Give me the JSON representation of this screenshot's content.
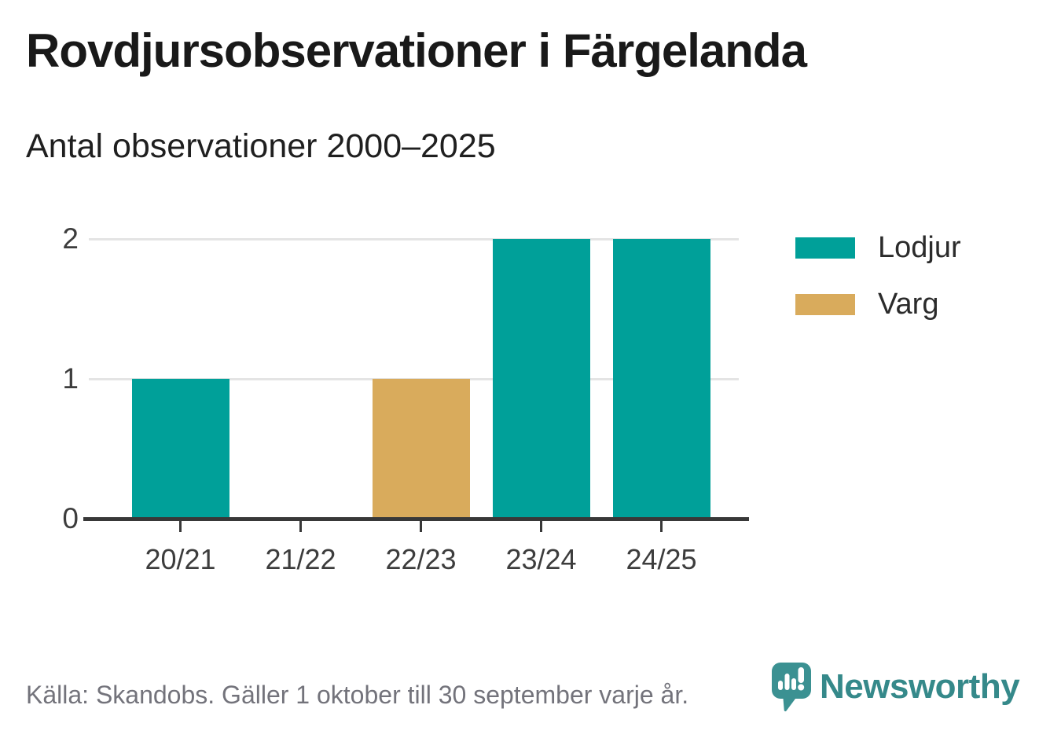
{
  "page": {
    "title": "Rovdjursobservationer i Färgelanda",
    "subtitle": "Antal observationer 2000–2025"
  },
  "chart_data": {
    "type": "bar",
    "categories": [
      "20/21",
      "21/22",
      "22/23",
      "23/24",
      "24/25"
    ],
    "series": [
      {
        "name": "Lodjur",
        "color": "#00a099",
        "values": [
          1,
          0,
          0,
          2,
          2
        ]
      },
      {
        "name": "Varg",
        "color": "#d9ab5c",
        "values": [
          0,
          0,
          1,
          0,
          0
        ]
      }
    ],
    "title": "Rovdjursobservationer i Färgelanda",
    "subtitle": "Antal observationer 2000–2025",
    "xlabel": "",
    "ylabel": "",
    "ylim": [
      0,
      2
    ],
    "yticks": [
      0,
      1,
      2
    ],
    "grid": "horizontal",
    "legend_position": "right"
  },
  "legend": {
    "items": [
      {
        "label": "Lodjur",
        "color": "#00a099"
      },
      {
        "label": "Varg",
        "color": "#d9ab5c"
      }
    ]
  },
  "footer": {
    "source": "Källa: Skandobs. Gäller 1 oktober till 30 september varje år.",
    "brand": "Newsworthy"
  },
  "colors": {
    "lodjur_teal": "#00a099",
    "varg_gold": "#d9ab5c",
    "axis_dark": "#383838",
    "gridline_gray": "#e4e4e4",
    "title_dark": "#191919",
    "muted_gray": "#73737b",
    "brand_teal": "#35898a"
  }
}
